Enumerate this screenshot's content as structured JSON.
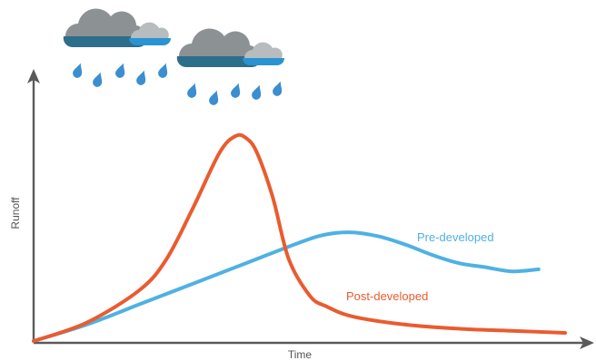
{
  "chart_data": {
    "type": "line",
    "xlabel": "Time",
    "ylabel": "Runoff",
    "xlim": [
      0,
      100
    ],
    "ylim": [
      0,
      100
    ],
    "grid": false,
    "series": [
      {
        "name": "Pre-developed",
        "color": "#4fb1e3",
        "x": [
          0,
          10,
          20,
          30,
          40,
          50,
          55,
          60,
          65,
          70,
          75,
          80,
          85,
          90,
          95
        ],
        "y": [
          0,
          8,
          18,
          28,
          38,
          48,
          52,
          53,
          51,
          47,
          42,
          38,
          36,
          34,
          35
        ]
      },
      {
        "name": "Post-developed",
        "color": "#ea5b2f",
        "x": [
          0,
          10,
          20,
          25,
          30,
          35,
          38,
          40,
          42,
          45,
          48,
          52,
          55,
          60,
          70,
          80,
          90,
          100
        ],
        "y": [
          0,
          9,
          25,
          40,
          65,
          92,
          100,
          99,
          92,
          70,
          40,
          22,
          17,
          12,
          8,
          6,
          5,
          4
        ]
      }
    ]
  },
  "clouds": {
    "color_dark": "#2d6e8a",
    "color_gray": "#8c9194",
    "color_light": "#2a93d1",
    "drop_color": "#3b8ed0"
  }
}
